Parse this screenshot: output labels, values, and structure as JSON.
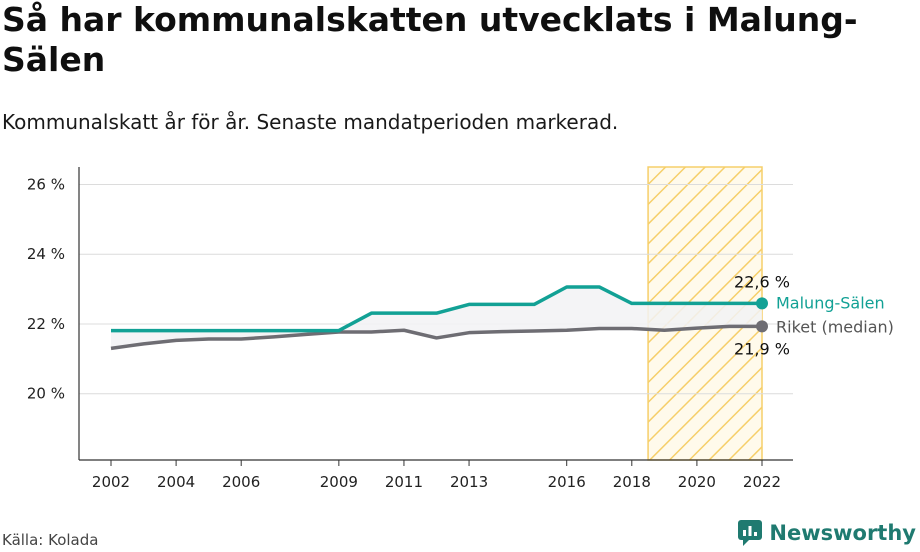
{
  "title": "Så har kommunalskatten utvecklats i Malung-Sälen",
  "subtitle": "Kommunalskatt år för år. Senaste mandatperioden markerad.",
  "source": "Källa: Kolada",
  "brand": "Newsworthy",
  "colors": {
    "municipality": "#12a195",
    "national": "#6e6d73",
    "highlight": "#f6cf6a"
  },
  "chart_data": {
    "type": "line",
    "x_ticks": [
      2002,
      2004,
      2006,
      2009,
      2011,
      2013,
      2016,
      2018,
      2020,
      2022
    ],
    "y_ticks": [
      {
        "value": 20,
        "label": "20 %"
      },
      {
        "value": 22,
        "label": "22 %"
      },
      {
        "value": 24,
        "label": "24 %"
      },
      {
        "value": 26,
        "label": "26 %"
      }
    ],
    "xlim": [
      2002,
      2022
    ],
    "ylim": [
      18.1,
      26.5
    ],
    "highlight_period": [
      2018.5,
      2022
    ],
    "grid": true,
    "series": [
      {
        "name": "Malung-Sälen",
        "color": "#12a195",
        "end_label": "22,6 %",
        "points": [
          [
            2002,
            21.81
          ],
          [
            2003,
            21.81
          ],
          [
            2004,
            21.81
          ],
          [
            2005,
            21.81
          ],
          [
            2006,
            21.81
          ],
          [
            2007,
            21.81
          ],
          [
            2008,
            21.81
          ],
          [
            2009,
            21.81
          ],
          [
            2010,
            22.31
          ],
          [
            2011,
            22.31
          ],
          [
            2012,
            22.31
          ],
          [
            2013,
            22.56
          ],
          [
            2014,
            22.56
          ],
          [
            2015,
            22.56
          ],
          [
            2016,
            23.06
          ],
          [
            2017,
            23.06
          ],
          [
            2018,
            22.59
          ],
          [
            2019,
            22.59
          ],
          [
            2020,
            22.59
          ],
          [
            2021,
            22.59
          ],
          [
            2022,
            22.59
          ]
        ]
      },
      {
        "name": "Riket (median)",
        "color": "#6e6d73",
        "end_label": "21,9 %",
        "points": [
          [
            2002,
            21.3
          ],
          [
            2003,
            21.43
          ],
          [
            2004,
            21.53
          ],
          [
            2005,
            21.57
          ],
          [
            2006,
            21.57
          ],
          [
            2007,
            21.63
          ],
          [
            2008,
            21.7
          ],
          [
            2009,
            21.77
          ],
          [
            2010,
            21.77
          ],
          [
            2011,
            21.82
          ],
          [
            2012,
            21.6
          ],
          [
            2013,
            21.75
          ],
          [
            2014,
            21.78
          ],
          [
            2015,
            21.8
          ],
          [
            2016,
            21.82
          ],
          [
            2017,
            21.87
          ],
          [
            2018,
            21.87
          ],
          [
            2019,
            21.82
          ],
          [
            2020,
            21.88
          ],
          [
            2021,
            21.93
          ],
          [
            2022,
            21.93
          ]
        ]
      }
    ]
  }
}
